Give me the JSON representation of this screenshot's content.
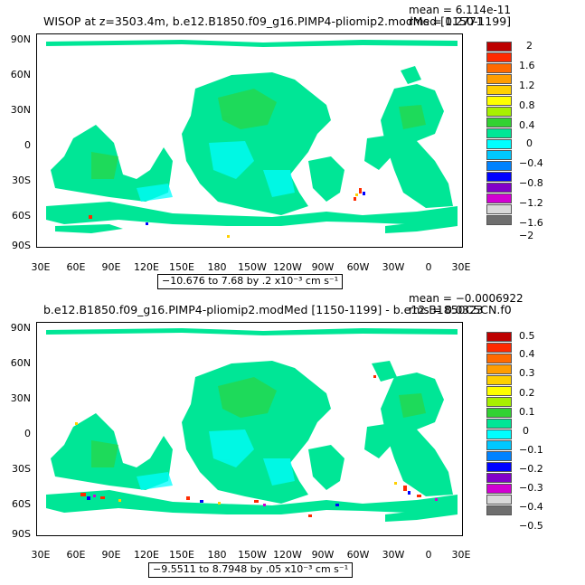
{
  "panels": [
    {
      "id": "top",
      "title": "WISOP at z=3503.4m, b.e12.B1850.f09_g16.PIMP4-pliomip2.modMed [1150-1199]",
      "stats": [
        "mean = 6.114e-11",
        "rms = 0.2771"
      ],
      "info": "−10.676 to 7.68 by .2 x10⁻³ cm s⁻¹",
      "colorbar_labels": [
        "2",
        "1.6",
        "1.2",
        "0.8",
        "0.4",
        "0",
        "−0.4",
        "−0.8",
        "−1.2",
        "−1.6",
        "−2"
      ]
    },
    {
      "id": "bottom",
      "title": "b.e12.B1850.f09_g16.PIMP4-pliomip2.modMed [1150-1199] - b.e12.B1850C5CN.f0",
      "stats": [
        "mean = −0.0006922",
        "rms = 0.0323"
      ],
      "info": "−9.5511 to 8.7948 by .05 x10⁻³ cm s⁻¹",
      "colorbar_labels": [
        "0.5",
        "0.4",
        "0.3",
        "0.2",
        "0.1",
        "0",
        "−0.1",
        "−0.2",
        "−0.3",
        "−0.4",
        "−0.5"
      ]
    }
  ],
  "lat_labels": [
    "90N",
    "60N",
    "30N",
    "0",
    "30S",
    "60S",
    "90S"
  ],
  "lon_labels": [
    "30E",
    "60E",
    "90E",
    "120E",
    "150E",
    "180",
    "150W",
    "120W",
    "90W",
    "60W",
    "30W",
    "0",
    "30E"
  ],
  "colorbar_colors": [
    "#bd0000",
    "#ff2a00",
    "#ff6a00",
    "#ff9d00",
    "#ffd000",
    "#ffff00",
    "#a8f000",
    "#32d232",
    "#00e696",
    "#00ffff",
    "#00c8ff",
    "#0082ff",
    "#0000ff",
    "#8200c8",
    "#d200d2",
    "#d9d9d9",
    "#6e6e6e"
  ],
  "field_colors": {
    "dominant": "#00e696",
    "secondary": "#32d232",
    "cyan": "#00ffff",
    "accents": [
      "#ff2a00",
      "#0000ff",
      "#ffd000",
      "#d200d2"
    ]
  }
}
